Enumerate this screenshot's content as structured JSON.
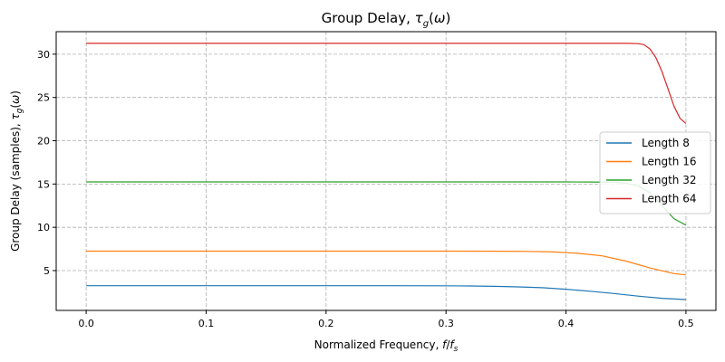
{
  "chart_data": {
    "type": "line",
    "title": "Group Delay, τg(ω)",
    "xlabel": "Normalized Frequency, f/fs",
    "ylabel": "Group Delay (samples), τg(ω)",
    "xlim": [
      -0.025,
      0.525
    ],
    "ylim": [
      0.4,
      32.6
    ],
    "xticks": [
      0.0,
      0.1,
      0.2,
      0.3,
      0.4,
      0.5
    ],
    "xtick_labels": [
      "0.0",
      "0.1",
      "0.2",
      "0.3",
      "0.4",
      "0.5"
    ],
    "yticks": [
      5,
      10,
      15,
      20,
      25,
      30
    ],
    "ytick_labels": [
      "5",
      "10",
      "15",
      "20",
      "25",
      "30"
    ],
    "grid": true,
    "legend_position": "center-right",
    "series": [
      {
        "name": "Length 8",
        "color": "#1f77b4",
        "x": [
          0.0,
          0.05,
          0.1,
          0.15,
          0.2,
          0.25,
          0.3,
          0.32,
          0.34,
          0.36,
          0.38,
          0.4,
          0.42,
          0.44,
          0.46,
          0.48,
          0.5
        ],
        "y": [
          3.25,
          3.25,
          3.25,
          3.25,
          3.25,
          3.25,
          3.24,
          3.22,
          3.18,
          3.12,
          3.02,
          2.85,
          2.62,
          2.35,
          2.05,
          1.8,
          1.65
        ]
      },
      {
        "name": "Length 16",
        "color": "#ff7f0e",
        "x": [
          0.0,
          0.05,
          0.1,
          0.15,
          0.2,
          0.25,
          0.3,
          0.35,
          0.37,
          0.39,
          0.41,
          0.43,
          0.45,
          0.47,
          0.49,
          0.5
        ],
        "y": [
          7.25,
          7.25,
          7.25,
          7.25,
          7.25,
          7.25,
          7.25,
          7.24,
          7.22,
          7.15,
          7.0,
          6.7,
          6.1,
          5.3,
          4.65,
          4.5
        ]
      },
      {
        "name": "Length 32",
        "color": "#2ca02c",
        "x": [
          0.0,
          0.1,
          0.2,
          0.3,
          0.4,
          0.42,
          0.44,
          0.45,
          0.46,
          0.47,
          0.48,
          0.49,
          0.5
        ],
        "y": [
          15.25,
          15.25,
          15.25,
          15.25,
          15.25,
          15.24,
          15.2,
          15.1,
          14.8,
          14.0,
          12.5,
          11.0,
          10.25
        ]
      },
      {
        "name": "Length 64",
        "color": "#d62728",
        "x": [
          0.0,
          0.1,
          0.2,
          0.3,
          0.4,
          0.45,
          0.46,
          0.465,
          0.47,
          0.475,
          0.48,
          0.485,
          0.49,
          0.495,
          0.5
        ],
        "y": [
          31.25,
          31.25,
          31.25,
          31.25,
          31.25,
          31.25,
          31.22,
          31.1,
          30.6,
          29.6,
          28.0,
          26.0,
          24.0,
          22.6,
          22.0
        ]
      }
    ]
  }
}
